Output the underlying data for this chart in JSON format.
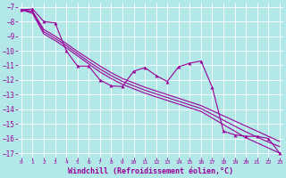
{
  "xlabel": "Windchill (Refroidissement éolien,°C)",
  "xlabel_fontsize": 6.0,
  "color": "#990099",
  "background_color": "#b3e8e8",
  "grid_color": "#ffffff",
  "yticks": [
    -7,
    -8,
    -9,
    -10,
    -11,
    -12,
    -13,
    -14,
    -15,
    -16,
    -17
  ],
  "xticks": [
    0,
    1,
    2,
    3,
    4,
    5,
    6,
    7,
    8,
    9,
    10,
    11,
    12,
    13,
    14,
    15,
    16,
    17,
    18,
    19,
    20,
    21,
    22,
    23
  ],
  "xlim": [
    -0.3,
    23.3
  ],
  "ylim": [
    -17.3,
    -6.7
  ],
  "jagged_y": [
    -7.2,
    -7.15,
    -8.0,
    -8.1,
    -10.0,
    -11.05,
    -11.05,
    -12.0,
    -12.4,
    -12.45,
    -11.4,
    -11.15,
    -11.7,
    -12.1,
    -11.1,
    -10.85,
    -10.7,
    -12.5,
    -15.5,
    -15.75,
    -15.85,
    -15.85,
    -16.0,
    -17.0
  ],
  "smooth1_y": [
    -7.2,
    -7.3,
    -8.55,
    -9.0,
    -9.5,
    -10.05,
    -10.55,
    -11.05,
    -11.5,
    -11.9,
    -12.2,
    -12.5,
    -12.75,
    -13.0,
    -13.25,
    -13.5,
    -13.75,
    -14.1,
    -14.45,
    -14.8,
    -15.15,
    -15.5,
    -15.85,
    -16.2
  ],
  "smooth2_y": [
    -7.2,
    -7.35,
    -8.7,
    -9.15,
    -9.65,
    -10.2,
    -10.75,
    -11.25,
    -11.7,
    -12.1,
    -12.4,
    -12.7,
    -12.95,
    -13.2,
    -13.45,
    -13.7,
    -13.95,
    -14.35,
    -14.75,
    -15.15,
    -15.55,
    -15.9,
    -16.25,
    -16.55
  ],
  "smooth3_y": [
    -7.2,
    -7.45,
    -8.85,
    -9.3,
    -9.8,
    -10.35,
    -10.9,
    -11.45,
    -11.9,
    -12.3,
    -12.6,
    -12.9,
    -13.15,
    -13.4,
    -13.65,
    -13.9,
    -14.15,
    -14.6,
    -15.05,
    -15.5,
    -15.95,
    -16.3,
    -16.65,
    -17.0
  ],
  "marker": "^",
  "markersize": 2.8,
  "linewidth": 0.8
}
